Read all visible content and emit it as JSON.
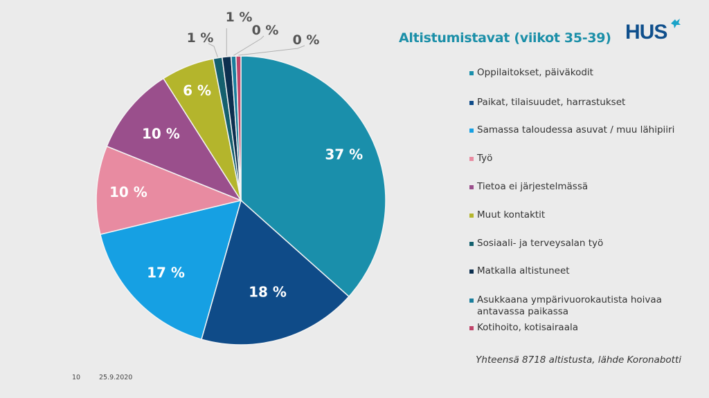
{
  "chart_data": {
    "type": "pie",
    "title": "Altistumistavat (viikot 35-39)",
    "start": "top",
    "direction": "clockwise",
    "categories": [
      "Oppilaitokset, päiväkodit",
      "Paikat, tilaisuudet, harrastukset",
      "Samassa taloudessa asuvat / muu lähipiiri",
      "Työ",
      "Tietoa ei järjestelmässä",
      "Muut kontaktit",
      "Sosiaali- ja terveysalan työ",
      "Matkalla altistuneet",
      "Asukkaana ympärivuorokautista hoivaa antavassa paikassa",
      "Kotihoito, kotisairaala"
    ],
    "values": [
      37,
      18,
      17,
      10,
      10,
      6,
      1,
      1,
      0,
      0
    ],
    "labels": [
      "37 %",
      "18 %",
      "17 %",
      "10 %",
      "10 %",
      "6 %",
      "1 %",
      "1 %",
      "0 %",
      "0 %"
    ],
    "colors": [
      "#1a8fab",
      "#0f4b88",
      "#16a0e3",
      "#e88ba1",
      "#9a4f8c",
      "#b4b52c",
      "#14606e",
      "#0c2f4f",
      "#1a7e9c",
      "#c0456a"
    ],
    "legend_position": "right",
    "unit": "%"
  },
  "header": {
    "title": "Altistumistavat (viikot 35-39)",
    "logo": "HUS"
  },
  "note": "Yhteensä 8718 altistusta, lähde Koronabotti",
  "footer": {
    "page": "10",
    "date": "25.9.2020"
  }
}
